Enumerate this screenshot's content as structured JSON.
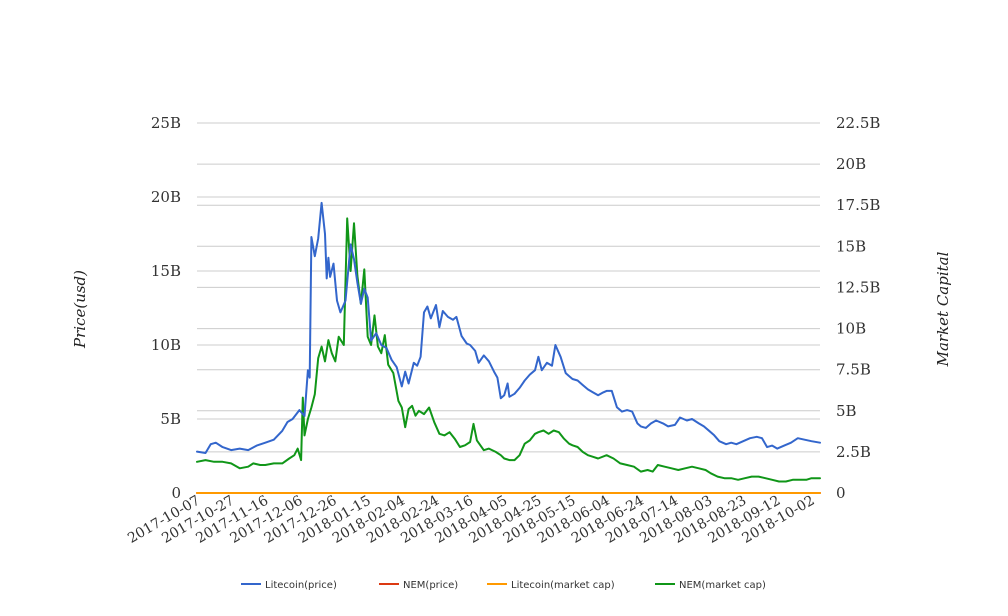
{
  "chart_data": {
    "type": "line",
    "title": "",
    "ylabel_left": "Price(usd)",
    "ylabel_right": "Market Capital",
    "x_ticks": [
      "2017-10-07",
      "2017-10-27",
      "2017-11-16",
      "2017-12-06",
      "2017-12-26",
      "2018-01-15",
      "2018-02-04",
      "2018-02-24",
      "2018-03-16",
      "2018-04-05",
      "2018-04-25",
      "2018-05-15",
      "2018-06-04",
      "2018-06-24",
      "2018-07-14",
      "2018-08-03",
      "2018-08-23",
      "2018-09-12",
      "2018-10-02"
    ],
    "x_range": [
      "2017-10-07",
      "2018-10-07"
    ],
    "y_left": {
      "ticks": [
        "0",
        "5B",
        "10B",
        "15B",
        "20B",
        "25B"
      ],
      "values": [
        0,
        5,
        10,
        15,
        20,
        25
      ],
      "range": [
        0,
        25
      ],
      "unit": "B"
    },
    "y_right": {
      "ticks": [
        "0",
        "2.5B",
        "5B",
        "7.5B",
        "10B",
        "12.5B",
        "15B",
        "17.5B",
        "20B",
        "22.5B"
      ],
      "values": [
        0,
        2.5,
        5,
        7.5,
        10,
        12.5,
        15,
        17.5,
        20,
        22.5
      ],
      "range": [
        0,
        22.5
      ],
      "unit": "B"
    },
    "grid": true,
    "legend_position": "bottom",
    "series": [
      {
        "name": "Litecoin(price)",
        "axis": "left",
        "color": "#3366cc",
        "points": [
          [
            "2017-10-07",
            2.8
          ],
          [
            "2017-10-12",
            2.7
          ],
          [
            "2017-10-15",
            3.3
          ],
          [
            "2017-10-18",
            3.4
          ],
          [
            "2017-10-22",
            3.1
          ],
          [
            "2017-10-27",
            2.9
          ],
          [
            "2017-11-01",
            3.0
          ],
          [
            "2017-11-06",
            2.9
          ],
          [
            "2017-11-11",
            3.2
          ],
          [
            "2017-11-16",
            3.4
          ],
          [
            "2017-11-21",
            3.6
          ],
          [
            "2017-11-26",
            4.2
          ],
          [
            "2017-11-29",
            4.8
          ],
          [
            "2017-12-02",
            5.0
          ],
          [
            "2017-12-06",
            5.6
          ],
          [
            "2017-12-09",
            5.2
          ],
          [
            "2017-12-11",
            8.3
          ],
          [
            "2017-12-12",
            7.8
          ],
          [
            "2017-12-13",
            17.3
          ],
          [
            "2017-12-15",
            16.0
          ],
          [
            "2017-12-17",
            17.2
          ],
          [
            "2017-12-19",
            19.6
          ],
          [
            "2017-12-21",
            17.5
          ],
          [
            "2017-12-22",
            14.5
          ],
          [
            "2017-12-23",
            15.9
          ],
          [
            "2017-12-24",
            14.6
          ],
          [
            "2017-12-26",
            15.5
          ],
          [
            "2017-12-28",
            13.0
          ],
          [
            "2017-12-30",
            12.2
          ],
          [
            "2018-01-02",
            13.0
          ],
          [
            "2018-01-05",
            16.8
          ],
          [
            "2018-01-07",
            15.8
          ],
          [
            "2018-01-09",
            14.2
          ],
          [
            "2018-01-11",
            12.8
          ],
          [
            "2018-01-13",
            13.8
          ],
          [
            "2018-01-15",
            13.2
          ],
          [
            "2018-01-17",
            10.3
          ],
          [
            "2018-01-20",
            10.8
          ],
          [
            "2018-01-23",
            10.0
          ],
          [
            "2018-01-26",
            9.8
          ],
          [
            "2018-01-29",
            9.0
          ],
          [
            "2018-02-01",
            8.5
          ],
          [
            "2018-02-04",
            7.2
          ],
          [
            "2018-02-06",
            8.2
          ],
          [
            "2018-02-08",
            7.4
          ],
          [
            "2018-02-11",
            8.8
          ],
          [
            "2018-02-13",
            8.6
          ],
          [
            "2018-02-15",
            9.2
          ],
          [
            "2018-02-17",
            12.2
          ],
          [
            "2018-02-19",
            12.6
          ],
          [
            "2018-02-21",
            11.8
          ],
          [
            "2018-02-24",
            12.7
          ],
          [
            "2018-02-26",
            11.2
          ],
          [
            "2018-02-28",
            12.3
          ],
          [
            "2018-03-03",
            11.9
          ],
          [
            "2018-03-06",
            11.7
          ],
          [
            "2018-03-08",
            11.9
          ],
          [
            "2018-03-11",
            10.6
          ],
          [
            "2018-03-14",
            10.1
          ],
          [
            "2018-03-16",
            10.0
          ],
          [
            "2018-03-19",
            9.6
          ],
          [
            "2018-03-21",
            8.8
          ],
          [
            "2018-03-24",
            9.3
          ],
          [
            "2018-03-27",
            8.9
          ],
          [
            "2018-03-30",
            8.2
          ],
          [
            "2018-04-01",
            7.8
          ],
          [
            "2018-04-03",
            6.4
          ],
          [
            "2018-04-05",
            6.6
          ],
          [
            "2018-04-07",
            7.4
          ],
          [
            "2018-04-08",
            6.5
          ],
          [
            "2018-04-11",
            6.7
          ],
          [
            "2018-04-14",
            7.1
          ],
          [
            "2018-04-17",
            7.6
          ],
          [
            "2018-04-20",
            8.0
          ],
          [
            "2018-04-23",
            8.3
          ],
          [
            "2018-04-25",
            9.2
          ],
          [
            "2018-04-27",
            8.3
          ],
          [
            "2018-04-30",
            8.8
          ],
          [
            "2018-05-03",
            8.6
          ],
          [
            "2018-05-05",
            10.0
          ],
          [
            "2018-05-08",
            9.2
          ],
          [
            "2018-05-11",
            8.1
          ],
          [
            "2018-05-13",
            7.9
          ],
          [
            "2018-05-15",
            7.7
          ],
          [
            "2018-05-18",
            7.6
          ],
          [
            "2018-05-21",
            7.3
          ],
          [
            "2018-05-24",
            7.0
          ],
          [
            "2018-05-27",
            6.8
          ],
          [
            "2018-05-30",
            6.6
          ],
          [
            "2018-06-02",
            6.8
          ],
          [
            "2018-06-04",
            6.9
          ],
          [
            "2018-06-07",
            6.9
          ],
          [
            "2018-06-10",
            5.8
          ],
          [
            "2018-06-13",
            5.5
          ],
          [
            "2018-06-16",
            5.6
          ],
          [
            "2018-06-19",
            5.5
          ],
          [
            "2018-06-22",
            4.7
          ],
          [
            "2018-06-24",
            4.5
          ],
          [
            "2018-06-27",
            4.4
          ],
          [
            "2018-06-30",
            4.7
          ],
          [
            "2018-07-03",
            4.9
          ],
          [
            "2018-07-07",
            4.7
          ],
          [
            "2018-07-10",
            4.5
          ],
          [
            "2018-07-14",
            4.6
          ],
          [
            "2018-07-17",
            5.1
          ],
          [
            "2018-07-21",
            4.9
          ],
          [
            "2018-07-24",
            5.0
          ],
          [
            "2018-07-28",
            4.7
          ],
          [
            "2018-07-31",
            4.5
          ],
          [
            "2018-08-03",
            4.2
          ],
          [
            "2018-08-06",
            3.9
          ],
          [
            "2018-08-09",
            3.5
          ],
          [
            "2018-08-13",
            3.3
          ],
          [
            "2018-08-16",
            3.4
          ],
          [
            "2018-08-19",
            3.3
          ],
          [
            "2018-08-23",
            3.5
          ],
          [
            "2018-08-27",
            3.7
          ],
          [
            "2018-08-31",
            3.8
          ],
          [
            "2018-09-03",
            3.7
          ],
          [
            "2018-09-06",
            3.1
          ],
          [
            "2018-09-09",
            3.2
          ],
          [
            "2018-09-12",
            3.0
          ],
          [
            "2018-09-16",
            3.2
          ],
          [
            "2018-09-20",
            3.4
          ],
          [
            "2018-09-24",
            3.7
          ],
          [
            "2018-09-28",
            3.6
          ],
          [
            "2018-10-02",
            3.5
          ],
          [
            "2018-10-07",
            3.4
          ]
        ]
      },
      {
        "name": "NEM(price)",
        "axis": "left",
        "color": "#dc3912",
        "points": [
          [
            "2017-10-07",
            0
          ],
          [
            "2018-10-07",
            0
          ]
        ]
      },
      {
        "name": "Litecoin(market cap)",
        "axis": "right",
        "color": "#ff9900",
        "points": [
          [
            "2017-10-07",
            0
          ],
          [
            "2018-10-07",
            0
          ]
        ]
      },
      {
        "name": "NEM(market cap)",
        "axis": "right",
        "color": "#109618",
        "points": [
          [
            "2017-10-07",
            1.9
          ],
          [
            "2017-10-12",
            2.0
          ],
          [
            "2017-10-17",
            1.9
          ],
          [
            "2017-10-22",
            1.9
          ],
          [
            "2017-10-27",
            1.8
          ],
          [
            "2017-11-01",
            1.5
          ],
          [
            "2017-11-06",
            1.6
          ],
          [
            "2017-11-09",
            1.8
          ],
          [
            "2017-11-13",
            1.7
          ],
          [
            "2017-11-16",
            1.7
          ],
          [
            "2017-11-21",
            1.8
          ],
          [
            "2017-11-26",
            1.8
          ],
          [
            "2017-11-30",
            2.1
          ],
          [
            "2017-12-03",
            2.3
          ],
          [
            "2017-12-05",
            2.7
          ],
          [
            "2017-12-07",
            2.0
          ],
          [
            "2017-12-08",
            5.8
          ],
          [
            "2017-12-09",
            3.5
          ],
          [
            "2017-12-11",
            4.5
          ],
          [
            "2017-12-13",
            5.2
          ],
          [
            "2017-12-15",
            6.0
          ],
          [
            "2017-12-17",
            8.2
          ],
          [
            "2017-12-19",
            8.9
          ],
          [
            "2017-12-21",
            8.0
          ],
          [
            "2017-12-23",
            9.3
          ],
          [
            "2017-12-25",
            8.5
          ],
          [
            "2017-12-27",
            8.0
          ],
          [
            "2017-12-29",
            9.5
          ],
          [
            "2018-01-01",
            9.0
          ],
          [
            "2018-01-03",
            16.7
          ],
          [
            "2018-01-05",
            13.5
          ],
          [
            "2018-01-07",
            16.4
          ],
          [
            "2018-01-09",
            13.2
          ],
          [
            "2018-01-11",
            11.5
          ],
          [
            "2018-01-13",
            13.6
          ],
          [
            "2018-01-15",
            9.5
          ],
          [
            "2018-01-17",
            9.0
          ],
          [
            "2018-01-19",
            10.8
          ],
          [
            "2018-01-21",
            8.9
          ],
          [
            "2018-01-23",
            8.5
          ],
          [
            "2018-01-25",
            9.6
          ],
          [
            "2018-01-27",
            7.8
          ],
          [
            "2018-01-30",
            7.3
          ],
          [
            "2018-02-02",
            5.6
          ],
          [
            "2018-02-04",
            5.2
          ],
          [
            "2018-02-06",
            4.0
          ],
          [
            "2018-02-08",
            5.1
          ],
          [
            "2018-02-10",
            5.3
          ],
          [
            "2018-02-12",
            4.7
          ],
          [
            "2018-02-14",
            5.0
          ],
          [
            "2018-02-17",
            4.8
          ],
          [
            "2018-02-20",
            5.2
          ],
          [
            "2018-02-23",
            4.3
          ],
          [
            "2018-02-26",
            3.6
          ],
          [
            "2018-03-01",
            3.5
          ],
          [
            "2018-03-04",
            3.7
          ],
          [
            "2018-03-07",
            3.3
          ],
          [
            "2018-03-10",
            2.8
          ],
          [
            "2018-03-13",
            2.9
          ],
          [
            "2018-03-16",
            3.1
          ],
          [
            "2018-03-18",
            4.2
          ],
          [
            "2018-03-20",
            3.2
          ],
          [
            "2018-03-24",
            2.6
          ],
          [
            "2018-03-27",
            2.7
          ],
          [
            "2018-03-31",
            2.5
          ],
          [
            "2018-04-03",
            2.3
          ],
          [
            "2018-04-05",
            2.1
          ],
          [
            "2018-04-08",
            2.0
          ],
          [
            "2018-04-11",
            2.0
          ],
          [
            "2018-04-14",
            2.3
          ],
          [
            "2018-04-17",
            3.0
          ],
          [
            "2018-04-20",
            3.2
          ],
          [
            "2018-04-23",
            3.6
          ],
          [
            "2018-04-25",
            3.7
          ],
          [
            "2018-04-28",
            3.8
          ],
          [
            "2018-05-01",
            3.6
          ],
          [
            "2018-05-04",
            3.8
          ],
          [
            "2018-05-07",
            3.7
          ],
          [
            "2018-05-10",
            3.3
          ],
          [
            "2018-05-13",
            3.0
          ],
          [
            "2018-05-15",
            2.9
          ],
          [
            "2018-05-18",
            2.8
          ],
          [
            "2018-05-21",
            2.5
          ],
          [
            "2018-05-24",
            2.3
          ],
          [
            "2018-05-27",
            2.2
          ],
          [
            "2018-05-30",
            2.1
          ],
          [
            "2018-06-04",
            2.3
          ],
          [
            "2018-06-08",
            2.1
          ],
          [
            "2018-06-12",
            1.8
          ],
          [
            "2018-06-16",
            1.7
          ],
          [
            "2018-06-20",
            1.6
          ],
          [
            "2018-06-24",
            1.3
          ],
          [
            "2018-06-28",
            1.4
          ],
          [
            "2018-07-01",
            1.3
          ],
          [
            "2018-07-04",
            1.7
          ],
          [
            "2018-07-08",
            1.6
          ],
          [
            "2018-07-12",
            1.5
          ],
          [
            "2018-07-16",
            1.4
          ],
          [
            "2018-07-20",
            1.5
          ],
          [
            "2018-07-24",
            1.6
          ],
          [
            "2018-07-28",
            1.5
          ],
          [
            "2018-08-01",
            1.4
          ],
          [
            "2018-08-04",
            1.2
          ],
          [
            "2018-08-08",
            1.0
          ],
          [
            "2018-08-12",
            0.9
          ],
          [
            "2018-08-16",
            0.9
          ],
          [
            "2018-08-20",
            0.8
          ],
          [
            "2018-08-24",
            0.9
          ],
          [
            "2018-08-28",
            1.0
          ],
          [
            "2018-09-01",
            1.0
          ],
          [
            "2018-09-05",
            0.9
          ],
          [
            "2018-09-09",
            0.8
          ],
          [
            "2018-09-13",
            0.7
          ],
          [
            "2018-09-17",
            0.7
          ],
          [
            "2018-09-21",
            0.8
          ],
          [
            "2018-09-25",
            0.8
          ],
          [
            "2018-09-29",
            0.8
          ],
          [
            "2018-10-02",
            0.9
          ],
          [
            "2018-10-07",
            0.9
          ]
        ]
      }
    ]
  }
}
